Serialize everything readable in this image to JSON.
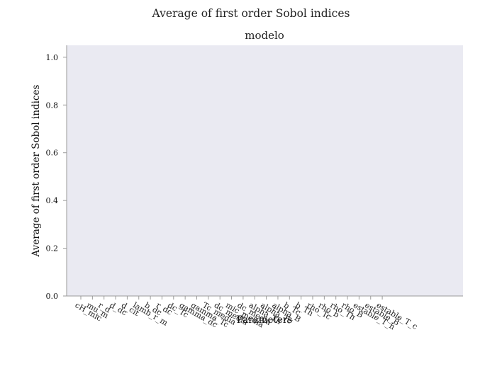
{
  "chart_data": {
    "type": "bar",
    "title": "Average of first order Sobol indices",
    "subtitle": "modelo",
    "xlabel": "Parameters",
    "ylabel": "Average of first order Sobol indices",
    "ylim": [
      0,
      1.05
    ],
    "yticks": [
      "0.0",
      "0.2",
      "0.4",
      "0.6",
      "0.8",
      "1.0"
    ],
    "ytick_values": [
      0.0,
      0.2,
      0.4,
      0.6,
      0.8,
      1.0
    ],
    "grid": false,
    "plot_background": "#eaeaf2",
    "categories": [
      "cH_mic",
      "mu_m",
      "r_d",
      "d_dc",
      "d_cit",
      "lamb_r_m",
      "b_dc",
      "r_dc",
      "dc_Tc",
      "gamma_dc",
      "gamma_Tc",
      "Tc_media",
      "dc_media",
      "mic_media",
      "dc_media",
      "alpha_Th",
      "alpha_Tc",
      "alpha_B",
      "b_Tc",
      "b_Th",
      "rho_Tc",
      "rho_b",
      "rho_Th",
      "rho_B",
      "estable_T_h",
      "estable_B",
      "estable_T_c"
    ],
    "values": [
      0,
      0,
      0,
      0,
      0,
      0,
      0,
      0,
      0,
      0,
      0,
      0,
      0,
      0,
      0,
      0,
      0,
      0,
      0,
      0,
      0,
      0,
      0,
      0,
      0,
      0,
      0
    ]
  }
}
